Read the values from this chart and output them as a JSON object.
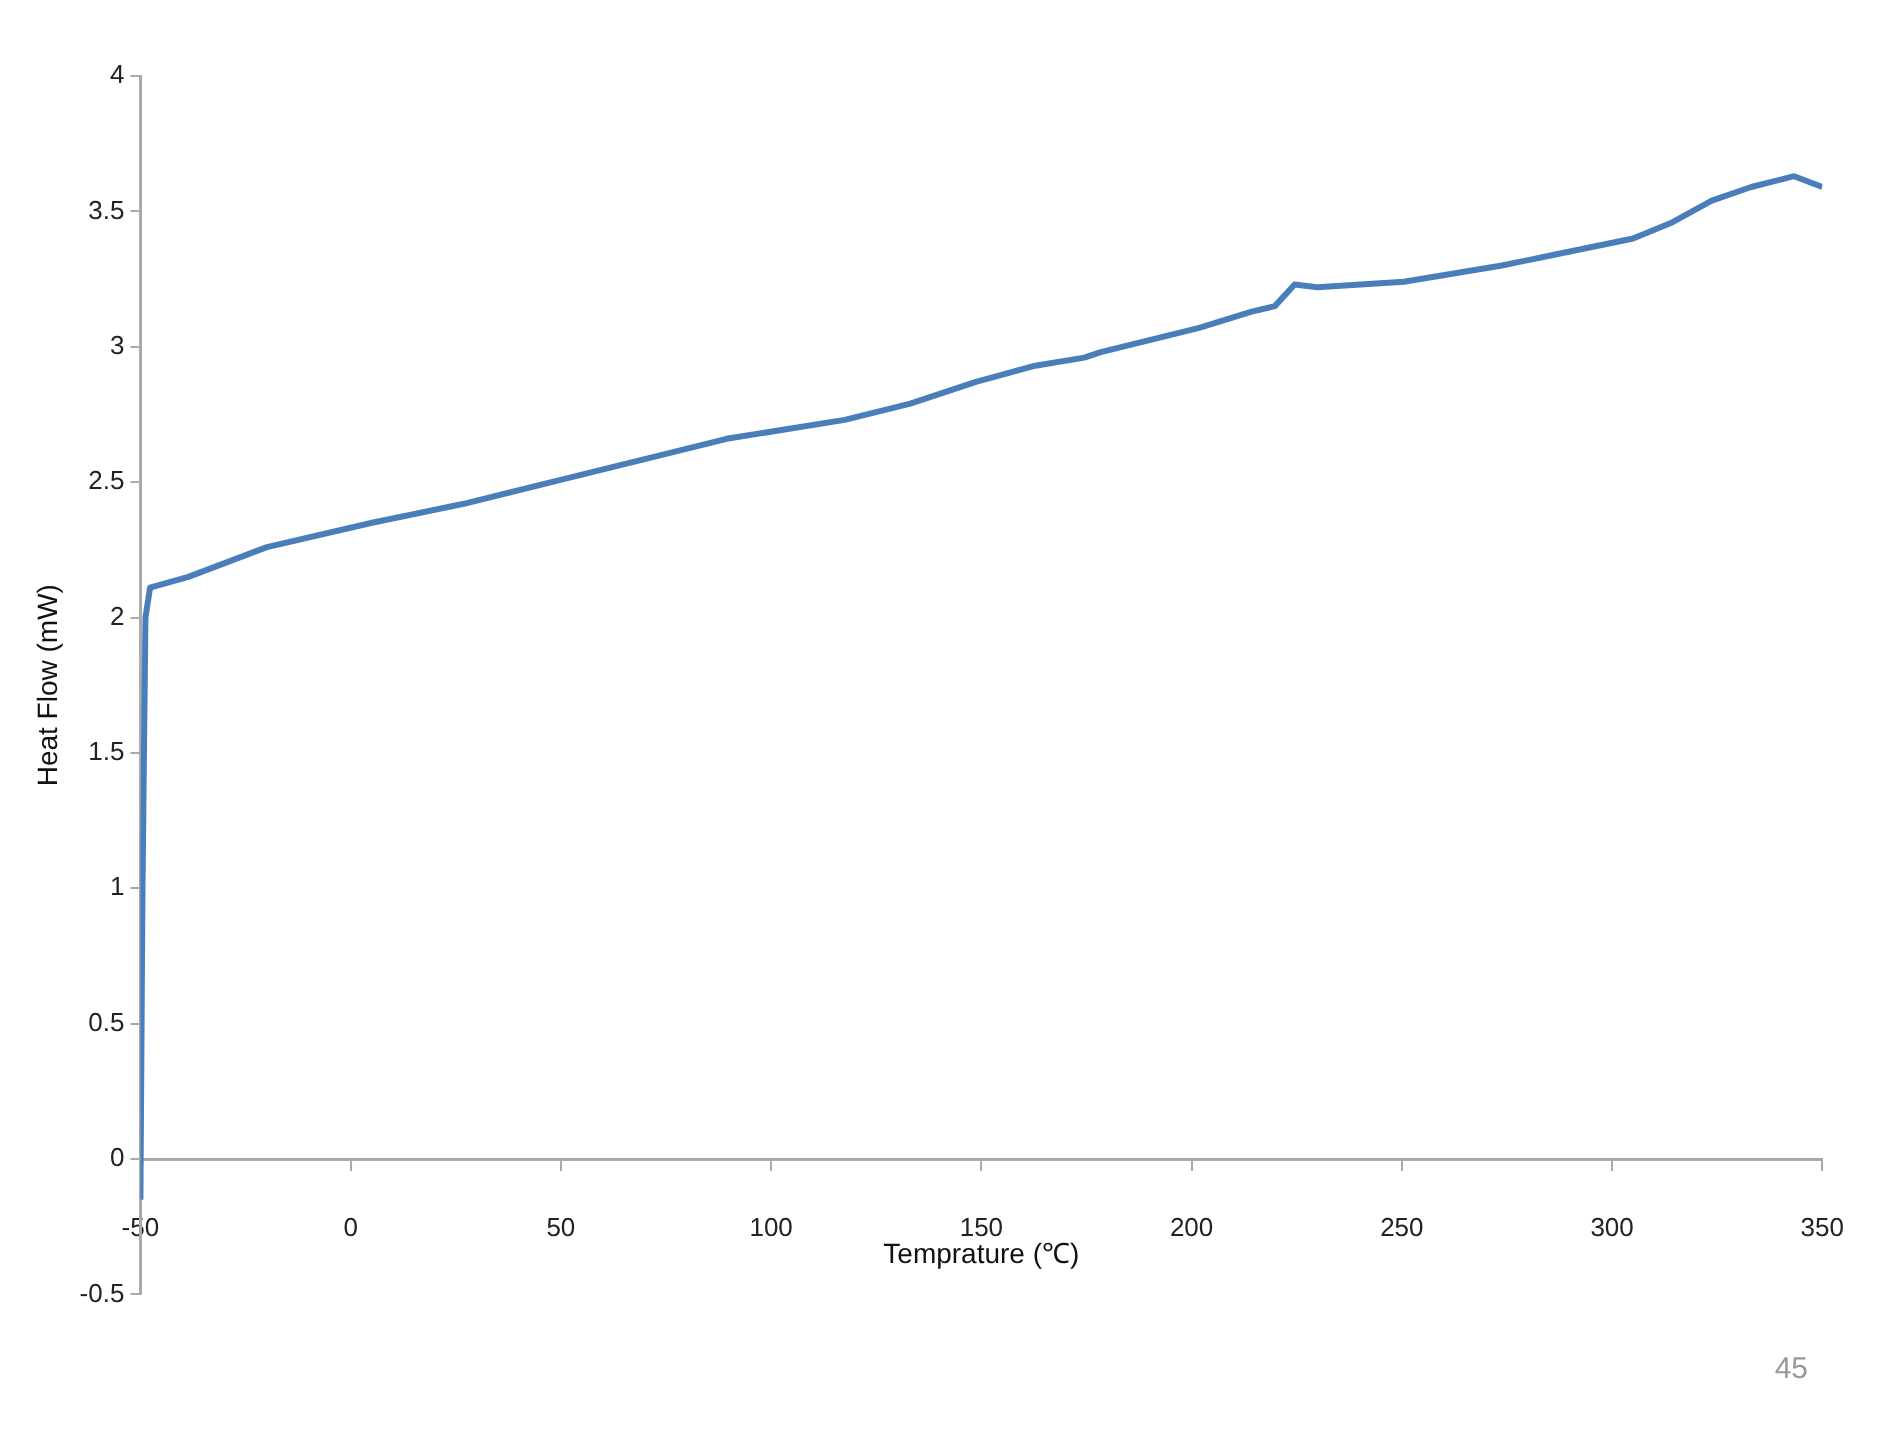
{
  "chart_data": {
    "type": "line",
    "xlabel": "Temprature (℃)",
    "ylabel": "Heat Flow (mW)",
    "xlim": [
      -50,
      350
    ],
    "xticks": [
      -50,
      0,
      50,
      100,
      150,
      200,
      250,
      300,
      350
    ],
    "ylim": [
      -0.5,
      4
    ],
    "yticks": [
      -0.5,
      0,
      0.5,
      1,
      1.5,
      2,
      2.5,
      3,
      3.5,
      4
    ],
    "grid": false,
    "legend": false,
    "marker": "none",
    "line_style": "solid",
    "series": [
      {
        "color": "#4a7ebb",
        "x": [
          -50,
          -49.5,
          -48.8,
          -47.7,
          -38.6,
          -19.9,
          5.1,
          26.9,
          50.4,
          73.8,
          89.4,
          117.5,
          133.1,
          148.7,
          162.8,
          174.5,
          178.4,
          201.8,
          214.3,
          219.8,
          224.5,
          229.9,
          250.5,
          273.8,
          289.4,
          305,
          314.4,
          323.7,
          333.1,
          343.3,
          350
        ],
        "values": [
          -0.15,
          1.0,
          2.0,
          2.11,
          2.15,
          2.26,
          2.35,
          2.42,
          2.51,
          2.6,
          2.66,
          2.73,
          2.79,
          2.87,
          2.93,
          2.96,
          2.98,
          3.07,
          3.13,
          3.15,
          3.23,
          3.22,
          3.24,
          3.3,
          3.35,
          3.4,
          3.46,
          3.54,
          3.59,
          3.63,
          3.59
        ]
      }
    ],
    "annotations": [
      "45"
    ]
  }
}
